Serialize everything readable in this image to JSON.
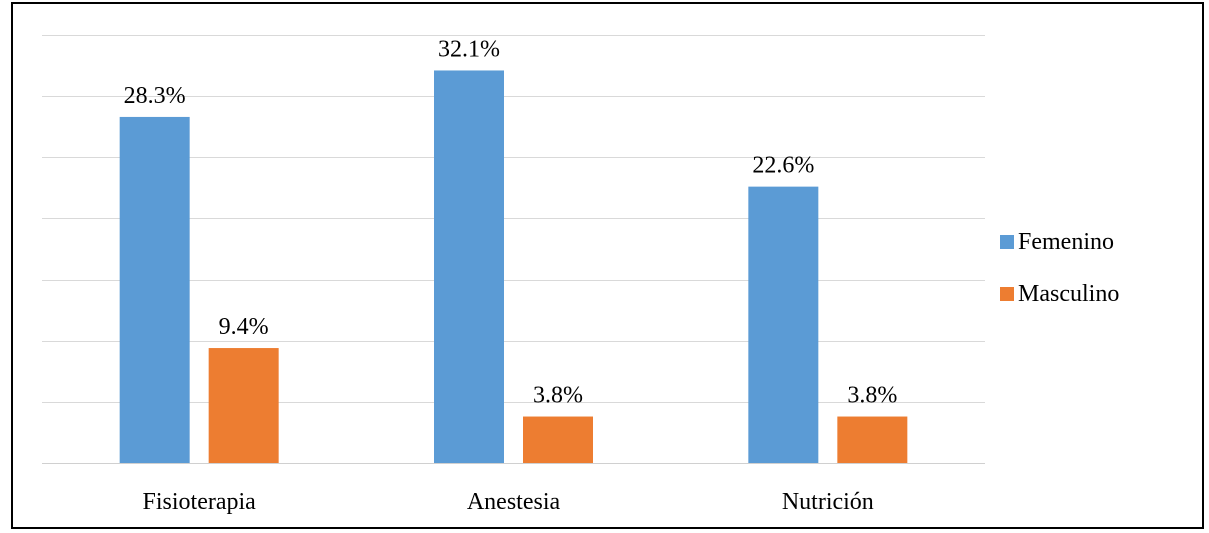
{
  "chart_data": {
    "type": "bar",
    "categories": [
      "Fisioterapia",
      "Anestesia",
      "Nutrición"
    ],
    "series": [
      {
        "name": "Femenino",
        "values": [
          28.3,
          32.1,
          22.6
        ],
        "labels": [
          "28.3%",
          "32.1%",
          "22.6%"
        ],
        "color": "#5B9BD5"
      },
      {
        "name": "Masculino",
        "values": [
          9.4,
          3.8,
          3.8
        ],
        "labels": [
          "9.4%",
          "3.8%",
          "3.8%"
        ],
        "color": "#ED7D31"
      }
    ],
    "ylim": [
      0,
      35
    ],
    "grid": true,
    "legend": "right",
    "title": "",
    "xlabel": "",
    "ylabel": ""
  }
}
